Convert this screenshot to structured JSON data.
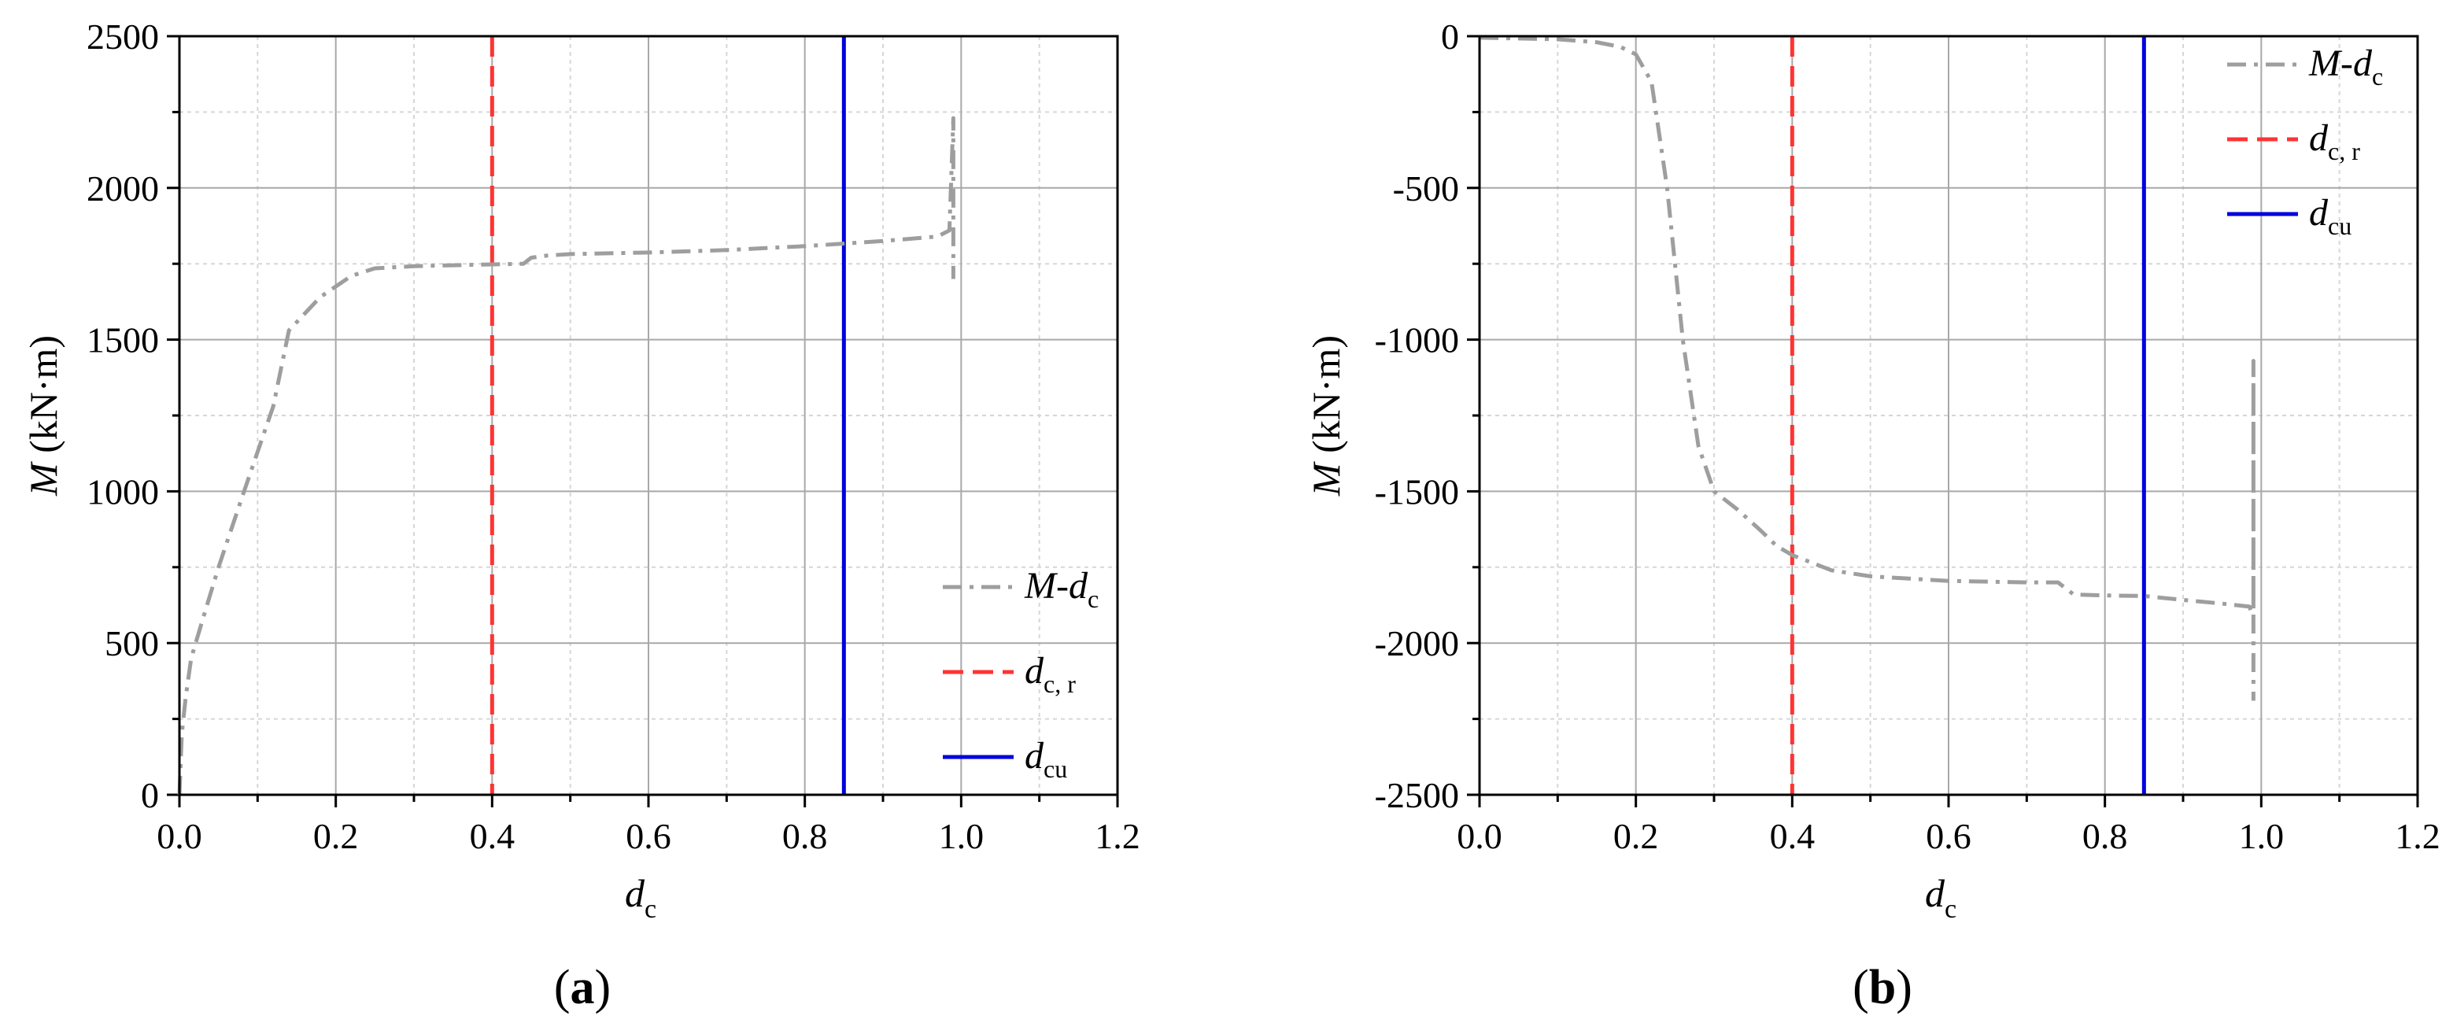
{
  "chart_data": [
    {
      "type": "line",
      "panel_label": "a",
      "xlabel": "d",
      "xlabel_sub": "c",
      "ylabel_var": "M",
      "ylabel_unit": " (kN·m)",
      "xlim": [
        0,
        1.2
      ],
      "ylim": [
        0,
        2500
      ],
      "xticks": [
        "0.0",
        "0.2",
        "0.4",
        "0.6",
        "0.8",
        "1.0",
        "1.2"
      ],
      "yticks": [
        "0",
        "500",
        "1000",
        "1500",
        "2000",
        "2500"
      ],
      "grid": true,
      "legend_position": "bottom-right",
      "legend": [
        {
          "var": "M",
          "sep": "-",
          "base": "d",
          "sub": "c"
        },
        {
          "var": "",
          "sep": "",
          "base": "d",
          "sub": "c, r"
        },
        {
          "var": "",
          "sep": "",
          "base": "d",
          "sub": "cu"
        }
      ],
      "series": [
        {
          "style": "dash-dot",
          "color": "#9e9e9e",
          "x": [
            0.0,
            0.003,
            0.008,
            0.015,
            0.03,
            0.05,
            0.08,
            0.1,
            0.12,
            0.14,
            0.18,
            0.22,
            0.25,
            0.3,
            0.35,
            0.4,
            0.44,
            0.45,
            0.47,
            0.5,
            0.6,
            0.7,
            0.8,
            0.9,
            0.97,
            0.985,
            0.99,
            0.99,
            0.99,
            0.99
          ],
          "y": [
            0,
            200,
            320,
            450,
            580,
            750,
            980,
            1130,
            1280,
            1530,
            1640,
            1710,
            1735,
            1742,
            1745,
            1748,
            1750,
            1770,
            1777,
            1782,
            1787,
            1795,
            1808,
            1825,
            1840,
            1860,
            2230,
            1860,
            1760,
            1700
          ]
        }
      ],
      "vlines": [
        {
          "x": 0.4,
          "style": "dashed",
          "color": "#ff3333"
        },
        {
          "x": 0.85,
          "style": "solid",
          "color": "#0000dd"
        }
      ]
    },
    {
      "type": "line",
      "panel_label": "b",
      "xlabel": "d",
      "xlabel_sub": "c",
      "ylabel_var": "M",
      "ylabel_unit": " (kN·m)",
      "xlim": [
        0,
        1.2
      ],
      "ylim": [
        -2500,
        0
      ],
      "xticks": [
        "0.0",
        "0.2",
        "0.4",
        "0.6",
        "0.8",
        "1.0",
        "1.2"
      ],
      "yticks": [
        "-2500",
        "-2000",
        "-1500",
        "-1000",
        "-500",
        "0"
      ],
      "grid": true,
      "legend_position": "top-right",
      "legend": [
        {
          "var": "M",
          "sep": "-",
          "base": "d",
          "sub": "c"
        },
        {
          "var": "",
          "sep": "",
          "base": "d",
          "sub": "c, r"
        },
        {
          "var": "",
          "sep": "",
          "base": "d",
          "sub": "cu"
        }
      ],
      "series": [
        {
          "style": "dash-dot",
          "color": "#9e9e9e",
          "x": [
            0.0,
            0.1,
            0.15,
            0.18,
            0.2,
            0.22,
            0.24,
            0.26,
            0.28,
            0.3,
            0.33,
            0.36,
            0.38,
            0.4,
            0.45,
            0.5,
            0.6,
            0.7,
            0.74,
            0.76,
            0.8,
            0.85,
            0.9,
            0.95,
            0.985,
            0.99,
            0.99,
            0.99
          ],
          "y": [
            -5,
            -10,
            -20,
            -35,
            -60,
            -150,
            -500,
            -1000,
            -1350,
            -1500,
            -1560,
            -1630,
            -1680,
            -1710,
            -1760,
            -1780,
            -1795,
            -1800,
            -1800,
            -1840,
            -1843,
            -1845,
            -1858,
            -1870,
            -1880,
            -1920,
            -1070,
            -2190
          ]
        }
      ],
      "vlines": [
        {
          "x": 0.4,
          "style": "dashed",
          "color": "#ff3333"
        },
        {
          "x": 0.85,
          "style": "solid",
          "color": "#0000dd"
        }
      ]
    }
  ]
}
